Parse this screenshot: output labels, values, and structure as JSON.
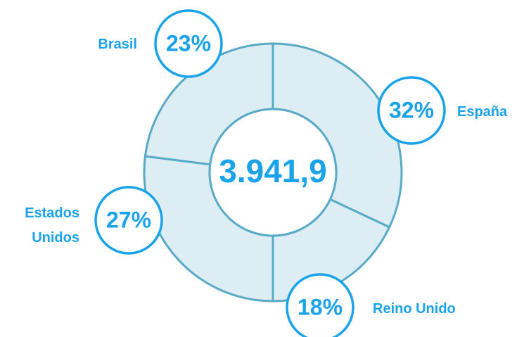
{
  "chart_data": {
    "type": "donut",
    "center_label": "3.941,9",
    "categories": [
      "España",
      "Reino Unido",
      "Estados Unidos",
      "Brasil"
    ],
    "values": [
      32,
      18,
      27,
      23
    ],
    "value_labels": [
      "32%",
      "18%",
      "27%",
      "23%"
    ],
    "color": "#dcedf4"
  }
}
